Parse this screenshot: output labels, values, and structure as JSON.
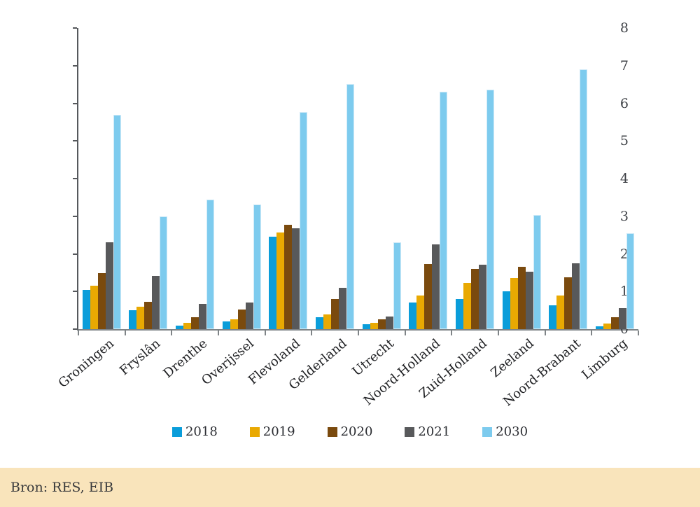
{
  "chart_data": {
    "type": "bar",
    "title": "",
    "xlabel": "",
    "ylabel": "",
    "ylim": [
      0,
      8
    ],
    "yticks": [
      0,
      1,
      2,
      3,
      4,
      5,
      6,
      7,
      8
    ],
    "grid": false,
    "legend_position": "bottom",
    "categories": [
      "Groningen",
      "Fryslân",
      "Drenthe",
      "Overijssel",
      "Flevoland",
      "Gelderland",
      "Utrecht",
      "Noord-Holland",
      "Zuid-Holland",
      "Zeeland",
      "Noord-Brabant",
      "Limburg"
    ],
    "series": [
      {
        "name": "2018",
        "color": "#0a9dda",
        "values": [
          1.05,
          0.5,
          0.1,
          0.2,
          2.45,
          0.32,
          0.13,
          0.7,
          0.8,
          1.0,
          0.63,
          0.08
        ]
      },
      {
        "name": "2019",
        "color": "#e9a902",
        "values": [
          1.15,
          0.6,
          0.16,
          0.27,
          2.57,
          0.4,
          0.17,
          0.9,
          1.23,
          1.35,
          0.9,
          0.14
        ]
      },
      {
        "name": "2020",
        "color": "#7a4a0e",
        "values": [
          1.48,
          0.72,
          0.32,
          0.53,
          2.78,
          0.8,
          0.27,
          1.73,
          1.6,
          1.65,
          1.38,
          0.32
        ]
      },
      {
        "name": "2021",
        "color": "#58595b",
        "values": [
          2.3,
          1.42,
          0.67,
          0.7,
          2.68,
          1.1,
          0.33,
          2.25,
          1.72,
          1.53,
          1.75,
          0.56
        ]
      },
      {
        "name": "2030",
        "color": "#7dcbee",
        "edge": "#cfeaf8",
        "values": [
          5.7,
          3.0,
          3.45,
          3.32,
          5.77,
          6.52,
          2.3,
          6.3,
          6.36,
          3.03,
          6.9,
          2.54
        ]
      }
    ]
  },
  "footer": {
    "source_label": "Bron: RES, EIB",
    "background": "#f9e4bb"
  }
}
